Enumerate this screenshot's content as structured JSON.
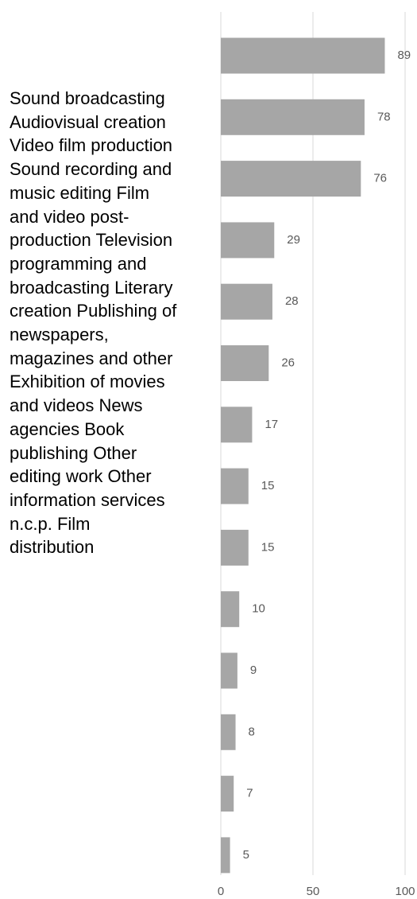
{
  "chart_data": {
    "type": "bar",
    "orientation": "horizontal",
    "categories": [
      "Sound broadcasting",
      "Audiovisual creation",
      "Video film production",
      "Sound recording and music editing",
      "Film and video post-production",
      "Television programming and broadcasting",
      "Literary creation",
      "Publishing of newspapers, magazines and other",
      "Exhibition of movies and videos",
      "News agencies",
      "Book publishing",
      "Other editing work",
      "Other information services n.c.p.",
      "Film distribution"
    ],
    "values": [
      89,
      78,
      76,
      29,
      28,
      26,
      17,
      15,
      15,
      10,
      9,
      8,
      7,
      5
    ],
    "color": "#a6a6a6",
    "xlim": [
      0,
      100
    ],
    "xticks": [
      0,
      50,
      100
    ],
    "grid": true
  }
}
